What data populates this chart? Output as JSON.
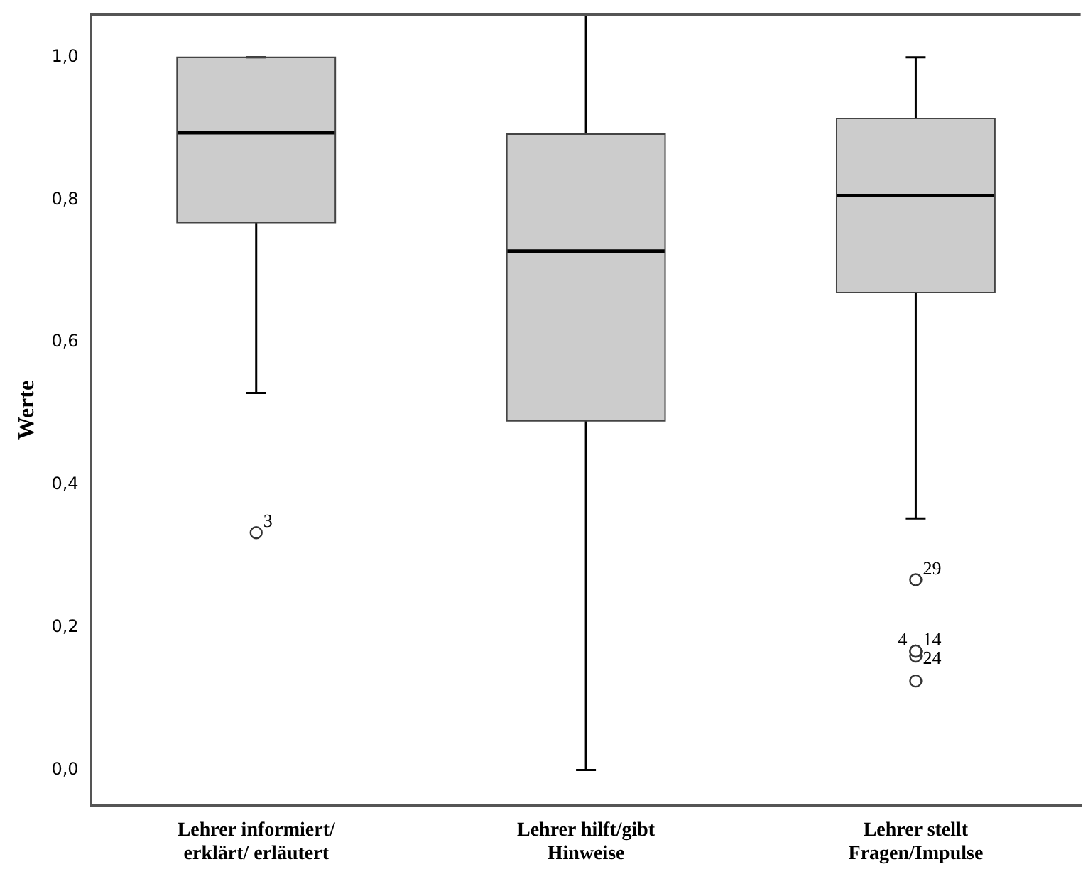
{
  "chart_data": {
    "type": "box",
    "ylabel": "Werte",
    "categories": [
      "Lehrer informiert/erklärt/ erläutert",
      "Lehrer hilft/gibt Hinweise",
      "Lehrer stellt Fragen/Impulse"
    ],
    "boxes": [
      {
        "low": 0.529,
        "q1": 0.768,
        "median": 0.894,
        "q3": 1.0,
        "high": 1.0,
        "outliers": [
          0.333
        ]
      },
      {
        "low": 0.0,
        "q1": 0.49,
        "median": 0.728,
        "q3": 0.892,
        "high": 1.06
      },
      {
        "low": 0.353,
        "q1": 0.67,
        "median": 0.806,
        "q3": 0.914,
        "high": 1.0,
        "outliers": [
          0.267,
          0.167,
          0.167,
          0.16,
          0.125
        ]
      }
    ],
    "color": "#cccccc",
    "ylim": [
      -0.05,
      1.06
    ],
    "yticks": [
      {
        "value": 0,
        "label": "0,0"
      },
      {
        "value": 0.2,
        "label": "0,2"
      },
      {
        "value": 0.4,
        "label": "0,4"
      },
      {
        "value": 0.6,
        "label": "0,6"
      },
      {
        "value": 0.8,
        "label": "0,8"
      },
      {
        "value": 1.0,
        "label": "1,0"
      }
    ],
    "grid": false,
    "legend": false,
    "annotations": [
      "3",
      "29",
      "14",
      "4",
      "24"
    ]
  }
}
